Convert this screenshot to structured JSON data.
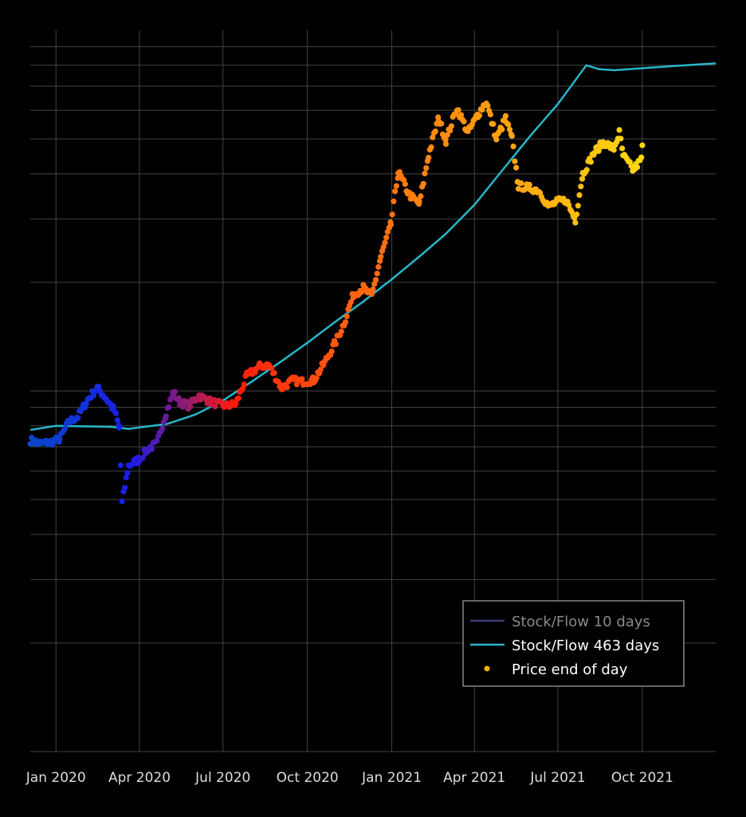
{
  "chart_data": {
    "type": "scatter",
    "x_axis": {
      "type": "date",
      "range": [
        "2019-12-04",
        "2021-12-20"
      ],
      "tick_labels": [
        "Jan 2020",
        "Apr 2020",
        "Jul 2020",
        "Oct 2020",
        "Jan 2021",
        "Apr 2021",
        "Jul 2021",
        "Oct 2021"
      ],
      "tick_dates": [
        "2020-01-01",
        "2020-04-01",
        "2020-07-01",
        "2020-10-01",
        "2021-01-01",
        "2021-04-01",
        "2021-07-01",
        "2021-10-01"
      ]
    },
    "y_axis": {
      "type": "log",
      "range": [
        1000,
        100000
      ],
      "tick_labels_visible": false
    },
    "grid": true,
    "legend": {
      "placement": "bottom-right",
      "entries": [
        {
          "name": "Stock/Flow 10 days",
          "kind": "line",
          "color": "#3d3a78",
          "text_color": "#8a8a8a"
        },
        {
          "name": "Stock/Flow 463 days",
          "kind": "line",
          "color": "#27b6c8",
          "text_color": "#ffffff"
        },
        {
          "name": "Price end of day",
          "kind": "marker",
          "color": "#ffb000",
          "text_color": "#ffffff"
        }
      ]
    },
    "series": [
      {
        "name": "Stock/Flow 463 days",
        "kind": "line",
        "color": "#27b6c8",
        "points": [
          [
            "2019-12-04",
            7800
          ],
          [
            "2020-01-01",
            8000
          ],
          [
            "2020-03-01",
            7950
          ],
          [
            "2020-03-20",
            7850
          ],
          [
            "2020-05-01",
            8100
          ],
          [
            "2020-06-01",
            8600
          ],
          [
            "2020-07-01",
            9400
          ],
          [
            "2020-08-01",
            10600
          ],
          [
            "2020-09-01",
            12000
          ],
          [
            "2020-10-01",
            13600
          ],
          [
            "2020-11-01",
            15600
          ],
          [
            "2020-12-01",
            17700
          ],
          [
            "2021-01-01",
            20400
          ],
          [
            "2021-02-01",
            23700
          ],
          [
            "2021-03-01",
            27300
          ],
          [
            "2021-04-01",
            32800
          ],
          [
            "2021-05-01",
            40800
          ],
          [
            "2021-06-01",
            51000
          ],
          [
            "2021-07-01",
            62500
          ],
          [
            "2021-08-01",
            80000
          ],
          [
            "2021-08-15",
            78000
          ],
          [
            "2021-09-01",
            77500
          ],
          [
            "2021-10-01",
            78500
          ],
          [
            "2021-11-01",
            79500
          ],
          [
            "2021-12-20",
            81000
          ]
        ]
      },
      {
        "name": "Price end of day",
        "kind": "scatter",
        "color_scale": [
          "#0a48c8",
          "#1a1ce8",
          "#ff1a0a",
          "#ff5a10",
          "#ff8a10",
          "#ffb010",
          "#ffd810"
        ],
        "points": [
          [
            "2019-12-04",
            7300
          ],
          [
            "2019-12-15",
            7150
          ],
          [
            "2019-12-25",
            7200
          ],
          [
            "2020-01-05",
            7350
          ],
          [
            "2020-01-15",
            8200
          ],
          [
            "2020-01-25",
            8500
          ],
          [
            "2020-02-05",
            9500
          ],
          [
            "2020-02-15",
            10200
          ],
          [
            "2020-02-25",
            9500
          ],
          [
            "2020-03-05",
            8800
          ],
          [
            "2020-03-10",
            7900
          ],
          [
            "2020-03-13",
            4900
          ],
          [
            "2020-03-20",
            6200
          ],
          [
            "2020-03-31",
            6450
          ],
          [
            "2020-04-10",
            6900
          ],
          [
            "2020-04-20",
            7150
          ],
          [
            "2020-04-30",
            8700
          ],
          [
            "2020-05-08",
            9900
          ],
          [
            "2020-05-15",
            9300
          ],
          [
            "2020-05-25",
            9100
          ],
          [
            "2020-06-05",
            9700
          ],
          [
            "2020-06-15",
            9400
          ],
          [
            "2020-06-25",
            9200
          ],
          [
            "2020-07-05",
            9100
          ],
          [
            "2020-07-15",
            9200
          ],
          [
            "2020-07-27",
            11000
          ],
          [
            "2020-08-10",
            11700
          ],
          [
            "2020-08-20",
            11800
          ],
          [
            "2020-09-03",
            10200
          ],
          [
            "2020-09-15",
            10700
          ],
          [
            "2020-09-25",
            10600
          ],
          [
            "2020-10-08",
            10700
          ],
          [
            "2020-10-20",
            12000
          ],
          [
            "2020-11-01",
            13700
          ],
          [
            "2020-11-10",
            15400
          ],
          [
            "2020-11-20",
            18500
          ],
          [
            "2020-12-01",
            19300
          ],
          [
            "2020-12-10",
            18300
          ],
          [
            "2020-12-20",
            23500
          ],
          [
            "2020-12-31",
            29000
          ],
          [
            "2021-01-08",
            40500
          ],
          [
            "2021-01-20",
            35000
          ],
          [
            "2021-01-31",
            33000
          ],
          [
            "2021-02-10",
            45000
          ],
          [
            "2021-02-21",
            57000
          ],
          [
            "2021-03-01",
            49500
          ],
          [
            "2021-03-13",
            61000
          ],
          [
            "2021-03-25",
            52000
          ],
          [
            "2021-04-05",
            58500
          ],
          [
            "2021-04-14",
            63500
          ],
          [
            "2021-04-25",
            50000
          ],
          [
            "2021-05-05",
            57000
          ],
          [
            "2021-05-12",
            50000
          ],
          [
            "2021-05-19",
            37000
          ],
          [
            "2021-06-01",
            36500
          ],
          [
            "2021-06-10",
            36000
          ],
          [
            "2021-06-21",
            32500
          ],
          [
            "2021-07-01",
            33500
          ],
          [
            "2021-07-10",
            33800
          ],
          [
            "2021-07-20",
            29800
          ],
          [
            "2021-07-28",
            40000
          ],
          [
            "2021-08-10",
            46000
          ],
          [
            "2021-08-20",
            49000
          ],
          [
            "2021-08-31",
            47000
          ],
          [
            "2021-09-06",
            52000
          ],
          [
            "2021-09-10",
            45000
          ],
          [
            "2021-09-21",
            41000
          ],
          [
            "2021-09-30",
            43800
          ],
          [
            "2021-10-01",
            48000
          ]
        ]
      }
    ]
  }
}
